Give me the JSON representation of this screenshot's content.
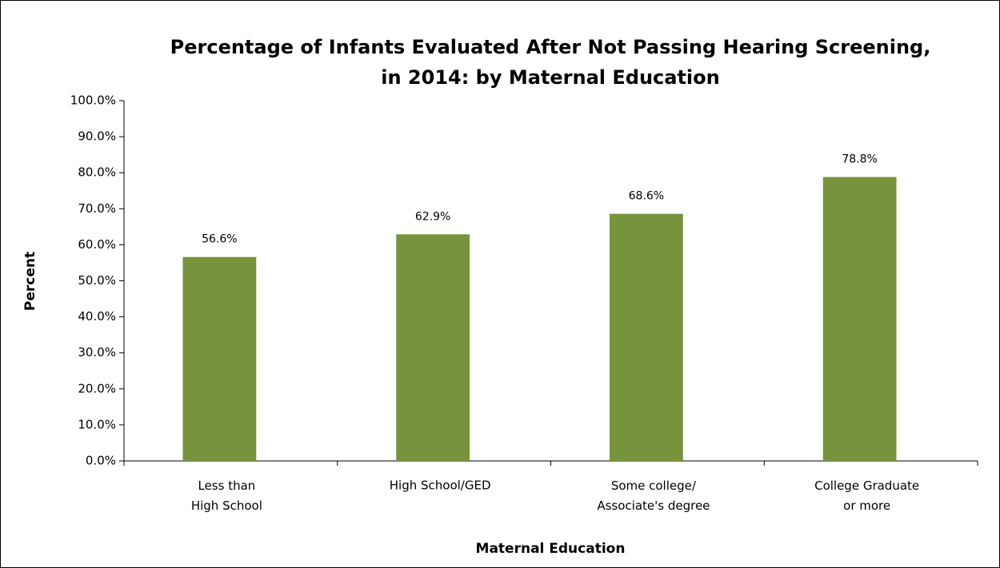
{
  "chart_data": {
    "type": "bar",
    "title": [
      "Percentage of Infants Evaluated After Not Passing Hearing Screening,",
      "in 2014: by Maternal Education"
    ],
    "x_label": "Maternal Education",
    "y_label": "Percent",
    "categories": [
      "Less than\nHigh School",
      "High School/GED",
      "Some college/\nAssociate's degree",
      "College Graduate\nor more"
    ],
    "values": [
      56.6,
      62.9,
      68.6,
      78.8
    ],
    "value_labels": [
      "56.6%",
      "62.9%",
      "68.6%",
      "78.8%"
    ],
    "color": "#77933c",
    "ylim": [
      0,
      100
    ],
    "yticks": [
      {
        "value": 0,
        "label": "0.0%"
      },
      {
        "value": 10,
        "label": "10.0%"
      },
      {
        "value": 20,
        "label": "20.0%"
      },
      {
        "value": 30,
        "label": "30.0%"
      },
      {
        "value": 40,
        "label": "40.0%"
      },
      {
        "value": 50,
        "label": "50.0%"
      },
      {
        "value": 60,
        "label": "60.0%"
      },
      {
        "value": 70,
        "label": "70.0%"
      },
      {
        "value": 80,
        "label": "80.0%"
      },
      {
        "value": 90,
        "label": "90.0%"
      },
      {
        "value": 100,
        "label": "100.0%"
      }
    ],
    "grid": false
  }
}
